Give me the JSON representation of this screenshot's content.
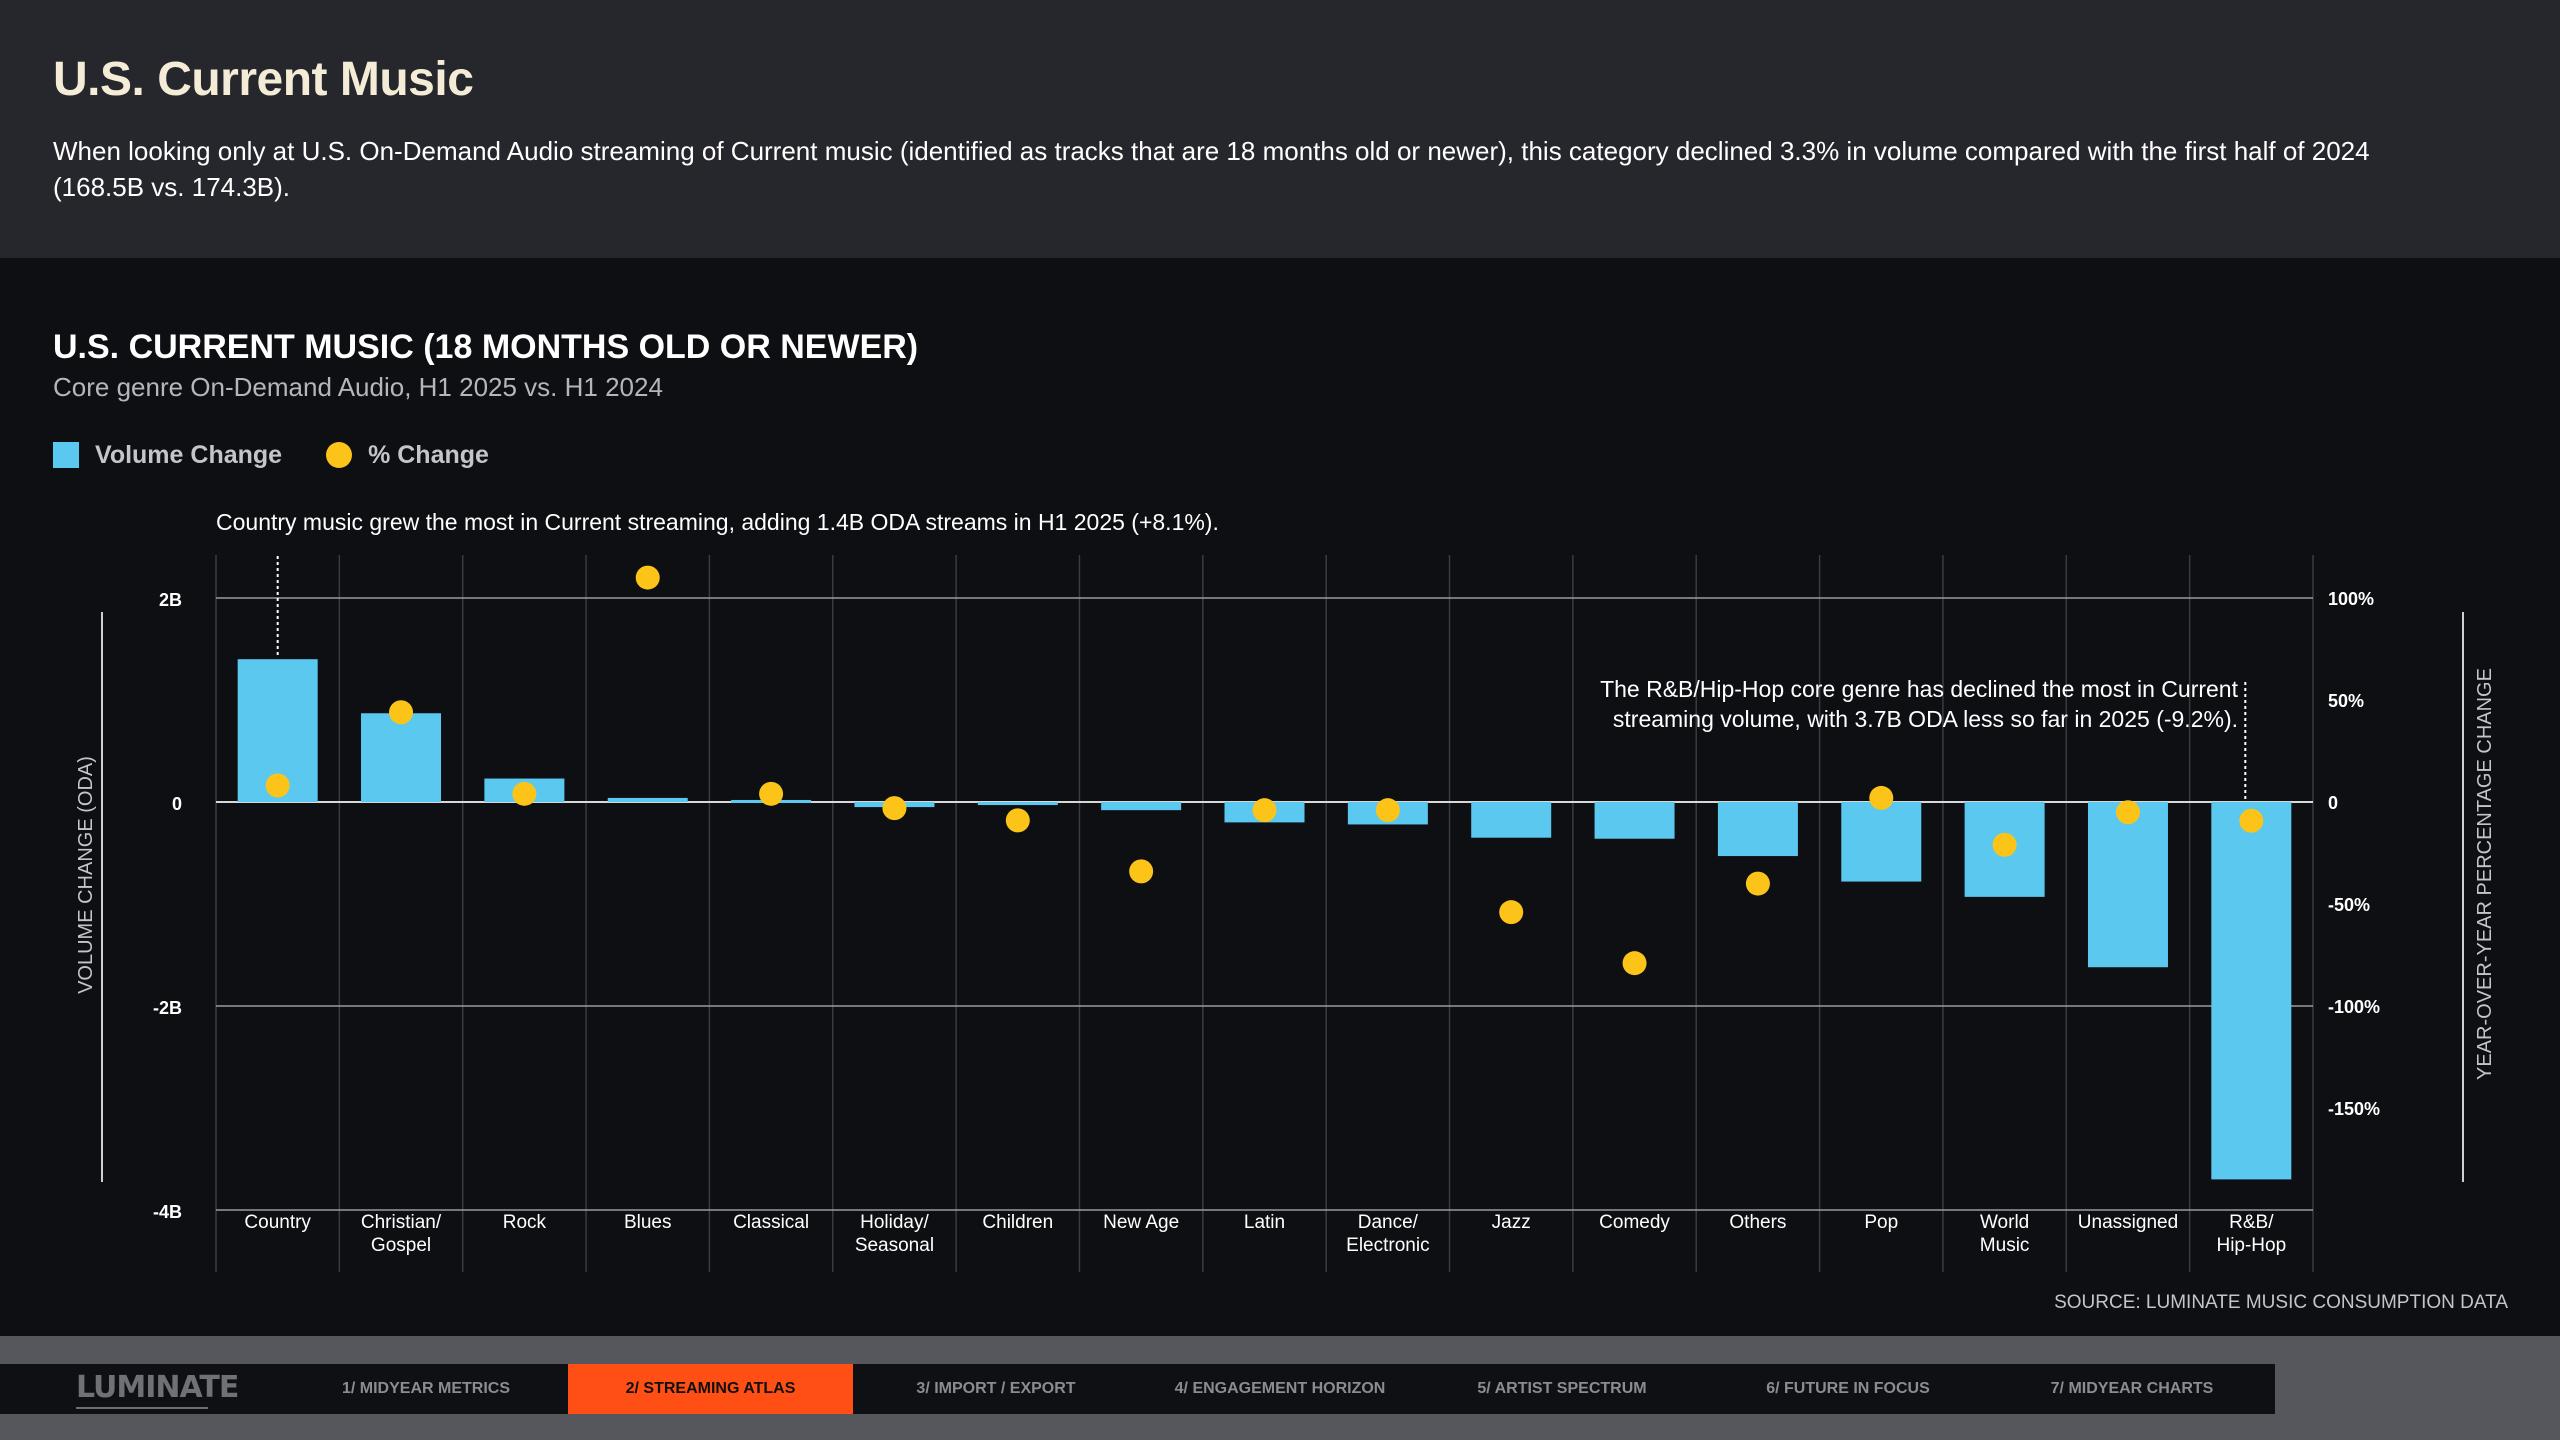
{
  "header": {
    "title": "U.S. Current Music",
    "description": "When looking only at U.S. On-Demand Audio streaming of Current music (identified as tracks that are 18 months old or newer), this category declined 3.3% in volume compared with the first half of 2024 (168.5B vs. 174.3B)."
  },
  "legend": {
    "volume_label": "Volume Change",
    "pct_label": "% Change"
  },
  "colors": {
    "bar": "#5bc8ef",
    "dot": "#fcc419",
    "accent": "#ff4f14"
  },
  "chart_data": {
    "type": "bar",
    "title": "U.S. CURRENT MUSIC (18 MONTHS OLD OR NEWER)",
    "subtitle": "Core genre On-Demand Audio, H1 2025 vs. H1 2024",
    "ylabel": "VOLUME CHANGE (ODA)",
    "y2label": "YEAR-OVER-YEAR PERCENTAGE CHANGE",
    "ylim": [
      -4,
      2.2
    ],
    "y2lim": [
      -175,
      100
    ],
    "yticks": [
      2,
      0,
      -2,
      -4
    ],
    "ytick_labels": [
      "2B",
      "0",
      "-2B",
      "-4B"
    ],
    "y2ticks": [
      100,
      50,
      0,
      -50,
      -100,
      -150
    ],
    "y2tick_labels": [
      "100%",
      "50%",
      "0",
      "-50%",
      "-100%",
      "-150%"
    ],
    "categories": [
      [
        "Country"
      ],
      [
        "Christian/",
        "Gospel"
      ],
      [
        "Rock"
      ],
      [
        "Blues"
      ],
      [
        "Classical"
      ],
      [
        "Holiday/",
        "Seasonal"
      ],
      [
        "Children"
      ],
      [
        "New Age"
      ],
      [
        "Latin"
      ],
      [
        "Dance/",
        "Electronic"
      ],
      [
        "Jazz"
      ],
      [
        "Comedy"
      ],
      [
        "Others"
      ],
      [
        "Pop"
      ],
      [
        "World",
        "Music"
      ],
      [
        "Unassigned"
      ],
      [
        "R&B/",
        "Hip-Hop"
      ]
    ],
    "series": [
      {
        "name": "Volume Change",
        "type": "bar",
        "axis": "left",
        "values": [
          1.4,
          0.87,
          0.23,
          0.04,
          0.02,
          -0.05,
          -0.03,
          -0.08,
          -0.2,
          -0.22,
          -0.35,
          -0.36,
          -0.53,
          -0.78,
          -0.93,
          -1.62,
          -3.7
        ]
      },
      {
        "name": "% Change",
        "type": "scatter",
        "axis": "right",
        "values": [
          8.1,
          44,
          4,
          110,
          4,
          -3,
          -9,
          -34,
          -4,
          -4,
          -54,
          -79,
          -40,
          2,
          -21,
          -5,
          -9.2
        ]
      }
    ],
    "annotations": [
      {
        "text": "Country music grew the most in Current streaming, adding 1.4B ODA streams in H1 2025 (+8.1%).",
        "category_index": 0
      },
      {
        "text": [
          "The R&B/Hip-Hop core genre has declined the most in Current",
          "streaming volume, with 3.7B ODA less so far in 2025 (-9.2%)."
        ],
        "category_index": 16
      }
    ]
  },
  "source": "SOURCE: LUMINATE MUSIC CONSUMPTION DATA",
  "footer": {
    "logo": "LUMINATE",
    "nav": [
      {
        "label": "1/ MIDYEAR METRICS",
        "active": false
      },
      {
        "label": "2/ STREAMING ATLAS",
        "active": true
      },
      {
        "label": "3/ IMPORT / EXPORT",
        "active": false
      },
      {
        "label": "4/ ENGAGEMENT HORIZON",
        "active": false
      },
      {
        "label": "5/ ARTIST SPECTRUM",
        "active": false
      },
      {
        "label": "6/ FUTURE IN FOCUS",
        "active": false
      },
      {
        "label": "7/ MIDYEAR CHARTS",
        "active": false
      }
    ]
  }
}
